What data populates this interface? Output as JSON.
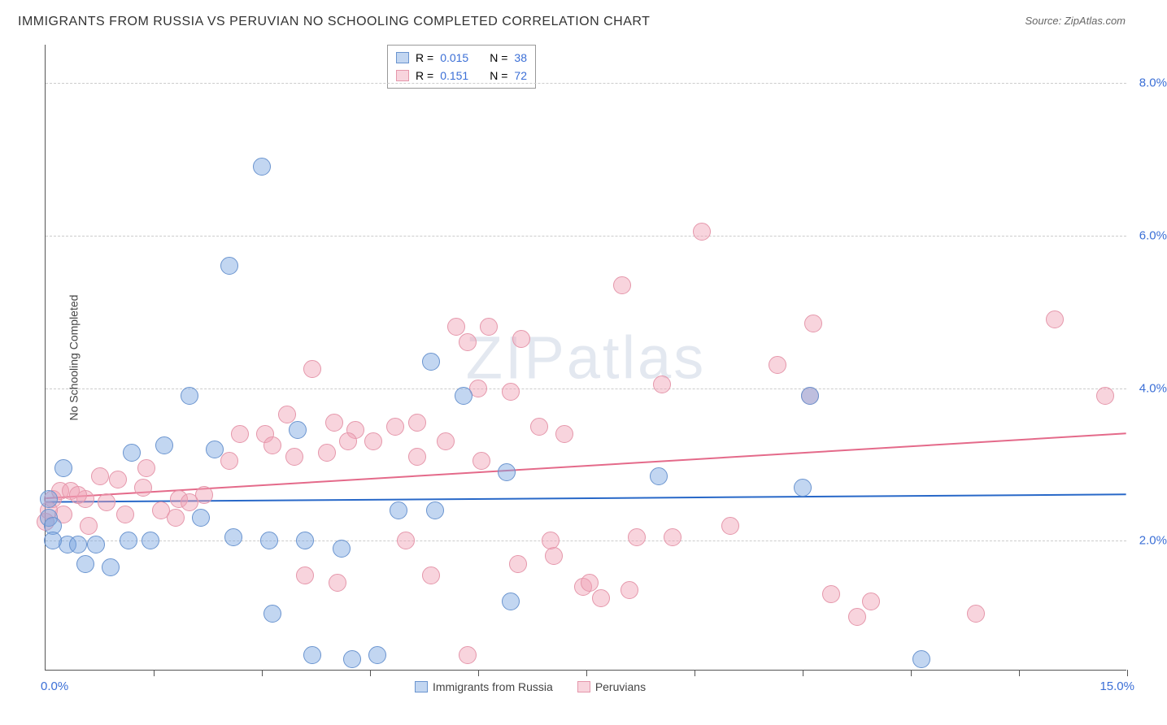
{
  "title": "IMMIGRANTS FROM RUSSIA VS PERUVIAN NO SCHOOLING COMPLETED CORRELATION CHART",
  "source": "Source: ZipAtlas.com",
  "watermark": "ZIPatlas",
  "ylabel": "No Schooling Completed",
  "x_min_label": "0.0%",
  "x_max_label": "15.0%",
  "series1": {
    "label": "Immigrants from Russia",
    "r_label": "R =",
    "r_value": "0.015",
    "n_label": "N =",
    "n_value": "38",
    "fill": "rgba(120,165,225,0.45)",
    "stroke": "#6a94cf",
    "line_color": "#2868c8",
    "reg_y1": 2.5,
    "reg_y2": 2.6
  },
  "series2": {
    "label": "Peruvians",
    "r_label": "R =",
    "r_value": "0.151",
    "n_label": "N =",
    "n_value": "72",
    "fill": "rgba(240,160,180,0.45)",
    "stroke": "#e597ab",
    "line_color": "#e46a8a",
    "reg_y1": 2.55,
    "reg_y2": 3.4
  },
  "xlim": [
    0,
    15
  ],
  "ylim": [
    0.3,
    8.5
  ],
  "grid_y": [
    2.0,
    4.0,
    6.0,
    8.0
  ],
  "grid_y_labels": [
    "2.0%",
    "4.0%",
    "6.0%",
    "8.0%"
  ],
  "x_ticks": [
    1.5,
    3.0,
    4.5,
    6.0,
    7.5,
    9.0,
    10.5,
    12.0,
    13.5,
    15.0
  ],
  "marker_radius": 11,
  "s1_points": [
    [
      0.05,
      2.3
    ],
    [
      0.1,
      2.2
    ],
    [
      0.25,
      2.95
    ],
    [
      0.3,
      1.95
    ],
    [
      0.45,
      1.95
    ],
    [
      0.55,
      1.7
    ],
    [
      0.7,
      1.95
    ],
    [
      0.9,
      1.65
    ],
    [
      1.15,
      2.0
    ],
    [
      1.2,
      3.15
    ],
    [
      1.45,
      2.0
    ],
    [
      1.65,
      3.25
    ],
    [
      2.0,
      3.9
    ],
    [
      2.15,
      2.3
    ],
    [
      2.35,
      3.2
    ],
    [
      2.55,
      5.6
    ],
    [
      2.6,
      2.05
    ],
    [
      3.0,
      6.9
    ],
    [
      3.15,
      1.05
    ],
    [
      3.1,
      2.0
    ],
    [
      3.5,
      3.45
    ],
    [
      3.6,
      2.0
    ],
    [
      3.7,
      0.5
    ],
    [
      4.1,
      1.9
    ],
    [
      4.25,
      0.45
    ],
    [
      4.6,
      0.5
    ],
    [
      4.9,
      2.4
    ],
    [
      5.35,
      4.35
    ],
    [
      5.4,
      2.4
    ],
    [
      5.8,
      3.9
    ],
    [
      6.4,
      2.9
    ],
    [
      6.45,
      1.2
    ],
    [
      8.5,
      2.85
    ],
    [
      10.5,
      2.7
    ],
    [
      10.6,
      3.9
    ],
    [
      12.15,
      0.45
    ],
    [
      0.05,
      2.55
    ],
    [
      0.1,
      2.0
    ]
  ],
  "s2_points": [
    [
      0.0,
      2.25
    ],
    [
      0.1,
      2.55
    ],
    [
      0.2,
      2.65
    ],
    [
      0.25,
      2.35
    ],
    [
      0.35,
      2.65
    ],
    [
      0.55,
      2.55
    ],
    [
      0.6,
      2.2
    ],
    [
      0.75,
      2.85
    ],
    [
      0.85,
      2.5
    ],
    [
      1.0,
      2.8
    ],
    [
      1.1,
      2.35
    ],
    [
      1.35,
      2.7
    ],
    [
      1.4,
      2.95
    ],
    [
      1.8,
      2.3
    ],
    [
      1.85,
      2.55
    ],
    [
      2.0,
      2.5
    ],
    [
      2.55,
      3.05
    ],
    [
      2.7,
      3.4
    ],
    [
      3.05,
      3.4
    ],
    [
      3.15,
      3.25
    ],
    [
      3.35,
      3.65
    ],
    [
      3.6,
      1.55
    ],
    [
      3.7,
      4.25
    ],
    [
      3.9,
      3.15
    ],
    [
      4.0,
      3.55
    ],
    [
      4.05,
      1.45
    ],
    [
      4.3,
      3.45
    ],
    [
      4.55,
      3.3
    ],
    [
      4.85,
      3.5
    ],
    [
      5.0,
      2.0
    ],
    [
      5.15,
      3.55
    ],
    [
      5.35,
      1.55
    ],
    [
      5.55,
      3.3
    ],
    [
      5.7,
      4.8
    ],
    [
      5.85,
      4.6
    ],
    [
      5.85,
      0.5
    ],
    [
      6.05,
      3.05
    ],
    [
      6.15,
      4.8
    ],
    [
      6.45,
      3.95
    ],
    [
      6.55,
      1.7
    ],
    [
      6.6,
      4.65
    ],
    [
      6.85,
      3.5
    ],
    [
      7.05,
      1.8
    ],
    [
      7.2,
      3.4
    ],
    [
      7.45,
      1.4
    ],
    [
      7.55,
      1.45
    ],
    [
      7.7,
      1.25
    ],
    [
      8.0,
      5.35
    ],
    [
      8.1,
      1.35
    ],
    [
      8.2,
      2.05
    ],
    [
      8.55,
      4.05
    ],
    [
      8.7,
      2.05
    ],
    [
      9.1,
      6.05
    ],
    [
      10.15,
      4.3
    ],
    [
      10.6,
      3.9
    ],
    [
      10.65,
      4.85
    ],
    [
      10.9,
      1.3
    ],
    [
      11.25,
      1.0
    ],
    [
      11.45,
      1.2
    ],
    [
      12.9,
      1.05
    ],
    [
      14.0,
      4.9
    ],
    [
      14.7,
      3.9
    ],
    [
      0.05,
      2.4
    ],
    [
      0.45,
      2.6
    ],
    [
      1.6,
      2.4
    ],
    [
      2.2,
      2.6
    ],
    [
      3.45,
      3.1
    ],
    [
      4.2,
      3.3
    ],
    [
      5.15,
      3.1
    ],
    [
      6.0,
      4.0
    ],
    [
      7.0,
      2.0
    ],
    [
      9.5,
      2.2
    ]
  ]
}
